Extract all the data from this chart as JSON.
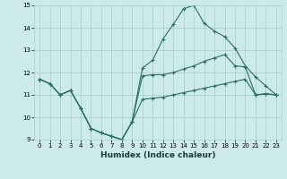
{
  "xlabel": "Humidex (Indice chaleur)",
  "bg_color": "#cce9eb",
  "grid_color": "#aacfd2",
  "line_color": "#2a6e65",
  "xlim": [
    -0.5,
    23.5
  ],
  "ylim": [
    9,
    15
  ],
  "xticks": [
    0,
    1,
    2,
    3,
    4,
    5,
    6,
    7,
    8,
    9,
    10,
    11,
    12,
    13,
    14,
    15,
    16,
    17,
    18,
    19,
    20,
    21,
    22,
    23
  ],
  "yticks": [
    9,
    10,
    11,
    12,
    13,
    14,
    15
  ],
  "series1_x": [
    0,
    1,
    2,
    3,
    4,
    5,
    6,
    7,
    8,
    9,
    10,
    11,
    12,
    13,
    14,
    15,
    16,
    17,
    18,
    19,
    20,
    21,
    22,
    23
  ],
  "series1_y": [
    11.7,
    11.5,
    11.0,
    11.2,
    10.4,
    9.5,
    9.3,
    9.15,
    9.0,
    9.8,
    10.8,
    10.85,
    10.9,
    11.0,
    11.1,
    11.2,
    11.3,
    11.4,
    11.5,
    11.6,
    11.7,
    11.0,
    11.05,
    11.0
  ],
  "series2_x": [
    0,
    1,
    2,
    3,
    4,
    5,
    6,
    7,
    8,
    9,
    10,
    11,
    12,
    13,
    14,
    15,
    16,
    17,
    18,
    19,
    20,
    21,
    22,
    23
  ],
  "series2_y": [
    11.7,
    11.5,
    11.0,
    11.2,
    10.4,
    9.5,
    9.3,
    9.15,
    9.0,
    9.8,
    12.2,
    12.55,
    13.5,
    14.15,
    14.85,
    15.0,
    14.2,
    13.85,
    13.6,
    13.1,
    12.3,
    11.8,
    11.4,
    11.0
  ],
  "series3_x": [
    0,
    1,
    2,
    3,
    4,
    5,
    6,
    7,
    8,
    9,
    10,
    11,
    12,
    13,
    14,
    15,
    16,
    17,
    18,
    19,
    20,
    21,
    22,
    23
  ],
  "series3_y": [
    11.7,
    11.5,
    11.0,
    11.2,
    10.4,
    9.5,
    9.3,
    9.15,
    9.0,
    9.8,
    11.85,
    11.9,
    11.9,
    12.0,
    12.15,
    12.3,
    12.5,
    12.65,
    12.8,
    12.3,
    12.25,
    11.0,
    11.05,
    11.0
  ]
}
